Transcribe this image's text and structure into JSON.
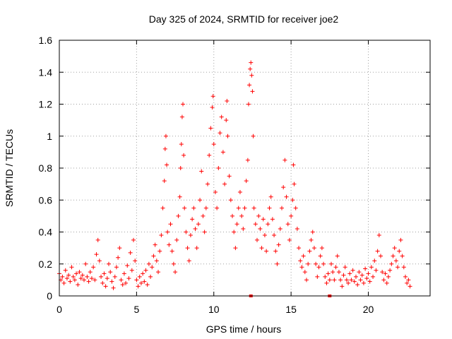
{
  "chart_data": {
    "type": "scatter",
    "title": "Day 325 of 2024, SRMTID for receiver joe2",
    "xlabel": "GPS time / hours",
    "ylabel": "SRMTID / TECUs",
    "xlim": [
      0,
      24
    ],
    "ylim": [
      0,
      1.6
    ],
    "xticks": [
      0,
      5,
      10,
      15,
      20
    ],
    "xtick_labels": [
      "0",
      "5",
      "10",
      "15",
      "20"
    ],
    "yticks": [
      0,
      0.2,
      0.4,
      0.6,
      0.8,
      1,
      1.2,
      1.4,
      1.6
    ],
    "ytick_labels": [
      "0",
      "0.2",
      "0.4",
      "0.6",
      "0.8",
      "1",
      "1.2",
      "1.4",
      "1.6"
    ],
    "grid": true,
    "marker": "+",
    "color": "#ff0000",
    "axis_markers_x": [
      12.4,
      17.5
    ],
    "series": [
      {
        "name": "SRMTID",
        "points": [
          [
            0.0,
            0.14
          ],
          [
            0.1,
            0.1
          ],
          [
            0.2,
            0.12
          ],
          [
            0.3,
            0.08
          ],
          [
            0.4,
            0.16
          ],
          [
            0.5,
            0.11
          ],
          [
            0.6,
            0.13
          ],
          [
            0.7,
            0.09
          ],
          [
            0.8,
            0.18
          ],
          [
            0.9,
            0.12
          ],
          [
            1.0,
            0.1
          ],
          [
            1.1,
            0.14
          ],
          [
            1.2,
            0.07
          ],
          [
            1.3,
            0.15
          ],
          [
            1.4,
            0.11
          ],
          [
            1.5,
            0.13
          ],
          [
            1.6,
            0.1
          ],
          [
            1.7,
            0.2
          ],
          [
            1.8,
            0.12
          ],
          [
            1.9,
            0.09
          ],
          [
            2.0,
            0.15
          ],
          [
            2.1,
            0.11
          ],
          [
            2.2,
            0.18
          ],
          [
            2.3,
            0.1
          ],
          [
            2.4,
            0.26
          ],
          [
            2.5,
            0.35
          ],
          [
            2.6,
            0.22
          ],
          [
            2.7,
            0.12
          ],
          [
            2.8,
            0.08
          ],
          [
            2.9,
            0.14
          ],
          [
            3.0,
            0.06
          ],
          [
            3.1,
            0.11
          ],
          [
            3.2,
            0.2
          ],
          [
            3.3,
            0.15
          ],
          [
            3.4,
            0.09
          ],
          [
            3.5,
            0.05
          ],
          [
            3.6,
            0.12
          ],
          [
            3.7,
            0.18
          ],
          [
            3.8,
            0.24
          ],
          [
            3.9,
            0.3
          ],
          [
            4.0,
            0.1
          ],
          [
            4.1,
            0.07
          ],
          [
            4.2,
            0.14
          ],
          [
            4.3,
            0.08
          ],
          [
            4.4,
            0.19
          ],
          [
            4.5,
            0.11
          ],
          [
            4.6,
            0.27
          ],
          [
            4.7,
            0.16
          ],
          [
            4.8,
            0.35
          ],
          [
            4.9,
            0.22
          ],
          [
            5.0,
            0.1
          ],
          [
            5.1,
            0.06
          ],
          [
            5.2,
            0.12
          ],
          [
            5.3,
            0.08
          ],
          [
            5.4,
            0.14
          ],
          [
            5.5,
            0.09
          ],
          [
            5.6,
            0.16
          ],
          [
            5.7,
            0.07
          ],
          [
            5.8,
            0.2
          ],
          [
            5.9,
            0.12
          ],
          [
            6.0,
            0.18
          ],
          [
            6.1,
            0.25
          ],
          [
            6.2,
            0.32
          ],
          [
            6.3,
            0.22
          ],
          [
            6.4,
            0.15
          ],
          [
            6.5,
            0.28
          ],
          [
            6.6,
            0.38
          ],
          [
            6.7,
            0.55
          ],
          [
            6.8,
            0.72
          ],
          [
            6.85,
            0.92
          ],
          [
            6.9,
            1.0
          ],
          [
            6.95,
            0.82
          ],
          [
            7.0,
            0.4
          ],
          [
            7.1,
            0.32
          ],
          [
            7.2,
            0.45
          ],
          [
            7.3,
            0.28
          ],
          [
            7.4,
            0.2
          ],
          [
            7.5,
            0.15
          ],
          [
            7.6,
            0.35
          ],
          [
            7.7,
            0.5
          ],
          [
            7.8,
            0.62
          ],
          [
            7.85,
            0.8
          ],
          [
            7.9,
            0.95
          ],
          [
            7.95,
            1.12
          ],
          [
            8.0,
            1.2
          ],
          [
            8.05,
            0.88
          ],
          [
            8.1,
            0.55
          ],
          [
            8.2,
            0.4
          ],
          [
            8.3,
            0.3
          ],
          [
            8.4,
            0.22
          ],
          [
            8.5,
            0.38
          ],
          [
            8.6,
            0.48
          ],
          [
            8.7,
            0.55
          ],
          [
            8.8,
            0.42
          ],
          [
            8.9,
            0.3
          ],
          [
            9.0,
            0.45
          ],
          [
            9.1,
            0.6
          ],
          [
            9.2,
            0.78
          ],
          [
            9.3,
            0.5
          ],
          [
            9.4,
            0.4
          ],
          [
            9.5,
            0.55
          ],
          [
            9.6,
            0.7
          ],
          [
            9.7,
            0.88
          ],
          [
            9.8,
            1.05
          ],
          [
            9.9,
            1.18
          ],
          [
            9.95,
            1.25
          ],
          [
            10.0,
            0.95
          ],
          [
            10.1,
            0.65
          ],
          [
            10.2,
            0.55
          ],
          [
            10.3,
            0.8
          ],
          [
            10.4,
            1.02
          ],
          [
            10.5,
            1.12
          ],
          [
            10.6,
            0.9
          ],
          [
            10.7,
            0.7
          ],
          [
            10.8,
            1.1
          ],
          [
            10.85,
            1.22
          ],
          [
            10.9,
            1.0
          ],
          [
            11.0,
            0.75
          ],
          [
            11.1,
            0.6
          ],
          [
            11.2,
            0.5
          ],
          [
            11.3,
            0.4
          ],
          [
            11.4,
            0.3
          ],
          [
            11.5,
            0.45
          ],
          [
            11.6,
            0.55
          ],
          [
            11.7,
            0.65
          ],
          [
            11.8,
            0.5
          ],
          [
            11.9,
            0.42
          ],
          [
            12.0,
            0.55
          ],
          [
            12.1,
            0.72
          ],
          [
            12.2,
            0.85
          ],
          [
            12.25,
            1.2
          ],
          [
            12.3,
            1.32
          ],
          [
            12.35,
            1.42
          ],
          [
            12.4,
            1.46
          ],
          [
            12.45,
            1.38
          ],
          [
            12.5,
            1.28
          ],
          [
            12.55,
            1.0
          ],
          [
            12.6,
            0.55
          ],
          [
            12.7,
            0.45
          ],
          [
            12.8,
            0.35
          ],
          [
            12.9,
            0.5
          ],
          [
            13.0,
            0.42
          ],
          [
            13.1,
            0.3
          ],
          [
            13.2,
            0.48
          ],
          [
            13.3,
            0.38
          ],
          [
            13.4,
            0.28
          ],
          [
            13.5,
            0.45
          ],
          [
            13.6,
            0.55
          ],
          [
            13.7,
            0.62
          ],
          [
            13.8,
            0.48
          ],
          [
            13.9,
            0.38
          ],
          [
            14.0,
            0.28
          ],
          [
            14.1,
            0.2
          ],
          [
            14.2,
            0.32
          ],
          [
            14.3,
            0.42
          ],
          [
            14.4,
            0.55
          ],
          [
            14.5,
            0.68
          ],
          [
            14.6,
            0.85
          ],
          [
            14.7,
            0.62
          ],
          [
            14.8,
            0.45
          ],
          [
            14.9,
            0.35
          ],
          [
            15.0,
            0.5
          ],
          [
            15.1,
            0.6
          ],
          [
            15.15,
            0.82
          ],
          [
            15.2,
            0.7
          ],
          [
            15.3,
            0.55
          ],
          [
            15.4,
            0.42
          ],
          [
            15.5,
            0.3
          ],
          [
            15.6,
            0.22
          ],
          [
            15.7,
            0.18
          ],
          [
            15.8,
            0.25
          ],
          [
            15.9,
            0.15
          ],
          [
            16.0,
            0.1
          ],
          [
            16.1,
            0.2
          ],
          [
            16.2,
            0.28
          ],
          [
            16.3,
            0.35
          ],
          [
            16.4,
            0.4
          ],
          [
            16.5,
            0.3
          ],
          [
            16.6,
            0.2
          ],
          [
            16.7,
            0.12
          ],
          [
            16.8,
            0.18
          ],
          [
            16.9,
            0.25
          ],
          [
            17.0,
            0.3
          ],
          [
            17.1,
            0.2
          ],
          [
            17.2,
            0.12
          ],
          [
            17.3,
            0.08
          ],
          [
            17.4,
            0.14
          ],
          [
            17.5,
            0.1
          ],
          [
            17.6,
            0.2
          ],
          [
            17.7,
            0.15
          ],
          [
            17.8,
            0.1
          ],
          [
            17.9,
            0.18
          ],
          [
            18.0,
            0.25
          ],
          [
            18.1,
            0.15
          ],
          [
            18.2,
            0.1
          ],
          [
            18.3,
            0.06
          ],
          [
            18.4,
            0.13
          ],
          [
            18.5,
            0.18
          ],
          [
            18.6,
            0.1
          ],
          [
            18.7,
            0.08
          ],
          [
            18.8,
            0.14
          ],
          [
            18.9,
            0.1
          ],
          [
            19.0,
            0.16
          ],
          [
            19.1,
            0.09
          ],
          [
            19.2,
            0.12
          ],
          [
            19.3,
            0.07
          ],
          [
            19.4,
            0.15
          ],
          [
            19.5,
            0.1
          ],
          [
            19.6,
            0.13
          ],
          [
            19.7,
            0.08
          ],
          [
            19.8,
            0.17
          ],
          [
            19.9,
            0.11
          ],
          [
            20.0,
            0.14
          ],
          [
            20.1,
            0.09
          ],
          [
            20.2,
            0.18
          ],
          [
            20.3,
            0.12
          ],
          [
            20.4,
            0.22
          ],
          [
            20.5,
            0.16
          ],
          [
            20.6,
            0.28
          ],
          [
            20.7,
            0.38
          ],
          [
            20.8,
            0.25
          ],
          [
            20.9,
            0.15
          ],
          [
            21.0,
            0.1
          ],
          [
            21.1,
            0.14
          ],
          [
            21.2,
            0.08
          ],
          [
            21.3,
            0.12
          ],
          [
            21.4,
            0.16
          ],
          [
            21.5,
            0.2
          ],
          [
            21.6,
            0.25
          ],
          [
            21.7,
            0.3
          ],
          [
            21.8,
            0.22
          ],
          [
            21.9,
            0.18
          ],
          [
            22.0,
            0.28
          ],
          [
            22.1,
            0.35
          ],
          [
            22.2,
            0.25
          ],
          [
            22.3,
            0.18
          ],
          [
            22.4,
            0.12
          ],
          [
            22.5,
            0.08
          ],
          [
            22.6,
            0.1
          ],
          [
            22.7,
            0.06
          ]
        ]
      }
    ]
  }
}
